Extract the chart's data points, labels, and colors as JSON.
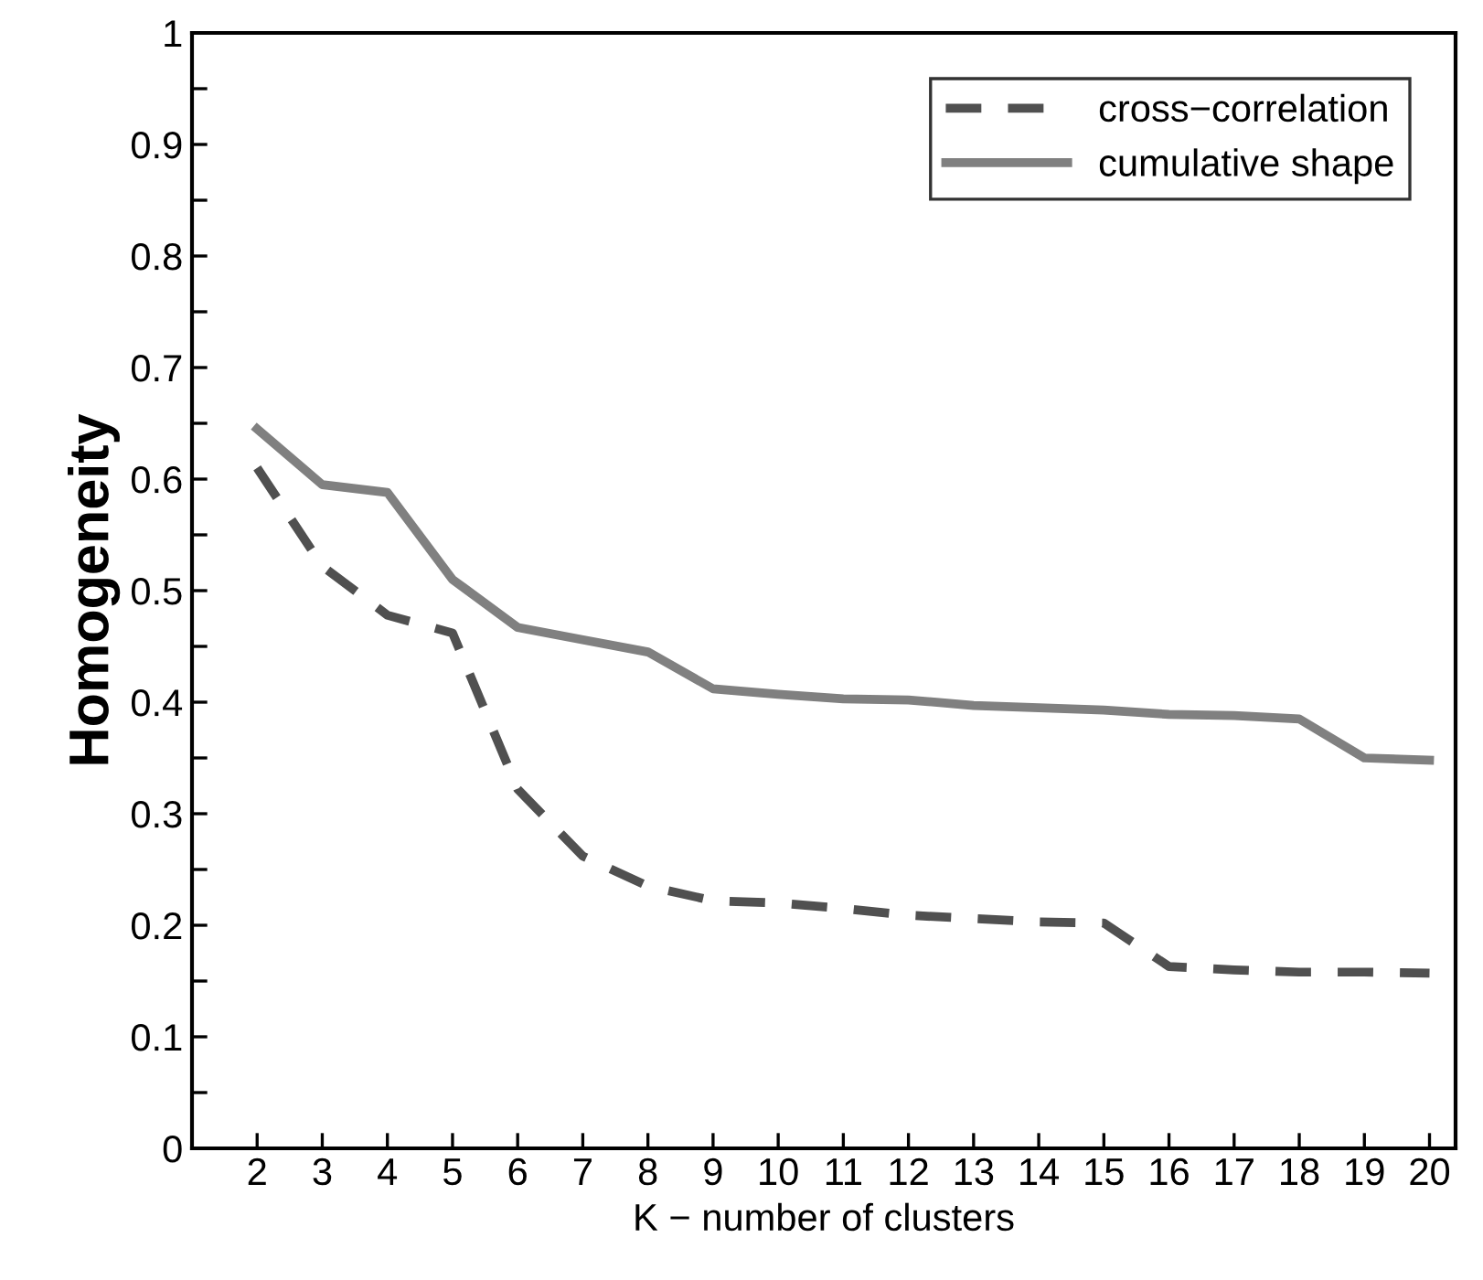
{
  "chart_data": {
    "type": "line",
    "xlabel": "K − number of clusters",
    "ylabel": "Homogeneity",
    "x": [
      2,
      3,
      4,
      5,
      6,
      7,
      8,
      9,
      10,
      11,
      12,
      13,
      14,
      15,
      16,
      17,
      18,
      19,
      20
    ],
    "series": [
      {
        "name": "cross−correlation",
        "color": "#505050",
        "line_style": "dashed",
        "values": [
          0.61,
          0.522,
          0.478,
          0.462,
          0.322,
          0.262,
          0.235,
          0.222,
          0.22,
          0.215,
          0.209,
          0.206,
          0.203,
          0.202,
          0.163,
          0.16,
          0.158,
          0.158,
          0.157
        ]
      },
      {
        "name": "cumulative shape",
        "color": "#808080",
        "line_style": "solid",
        "values": [
          0.645,
          0.595,
          0.588,
          0.51,
          0.467,
          0.456,
          0.445,
          0.412,
          0.407,
          0.403,
          0.402,
          0.397,
          0.395,
          0.393,
          0.389,
          0.388,
          0.385,
          0.35,
          0.348
        ]
      }
    ],
    "xlim": [
      1,
      20.4
    ],
    "ylim": [
      0,
      1
    ],
    "xticks": [
      2,
      3,
      4,
      5,
      6,
      7,
      8,
      9,
      10,
      11,
      12,
      13,
      14,
      15,
      16,
      17,
      18,
      19,
      20
    ],
    "yticks": [
      0,
      {
        "value": 0.05,
        "label": null
      },
      0.1,
      {
        "value": 0.15,
        "label": null
      },
      0.2,
      {
        "value": 0.25,
        "label": null
      },
      0.3,
      {
        "value": 0.35,
        "label": null
      },
      0.4,
      {
        "value": 0.45,
        "label": null
      },
      0.5,
      {
        "value": 0.55,
        "label": null
      },
      0.6,
      {
        "value": 0.65,
        "label": null
      },
      0.7,
      {
        "value": 0.75,
        "label": null
      },
      0.8,
      {
        "value": 0.85,
        "label": null
      },
      0.9,
      {
        "value": 0.95,
        "label": null
      },
      1
    ],
    "grid": false,
    "legend": "top right",
    "marker": "none"
  }
}
